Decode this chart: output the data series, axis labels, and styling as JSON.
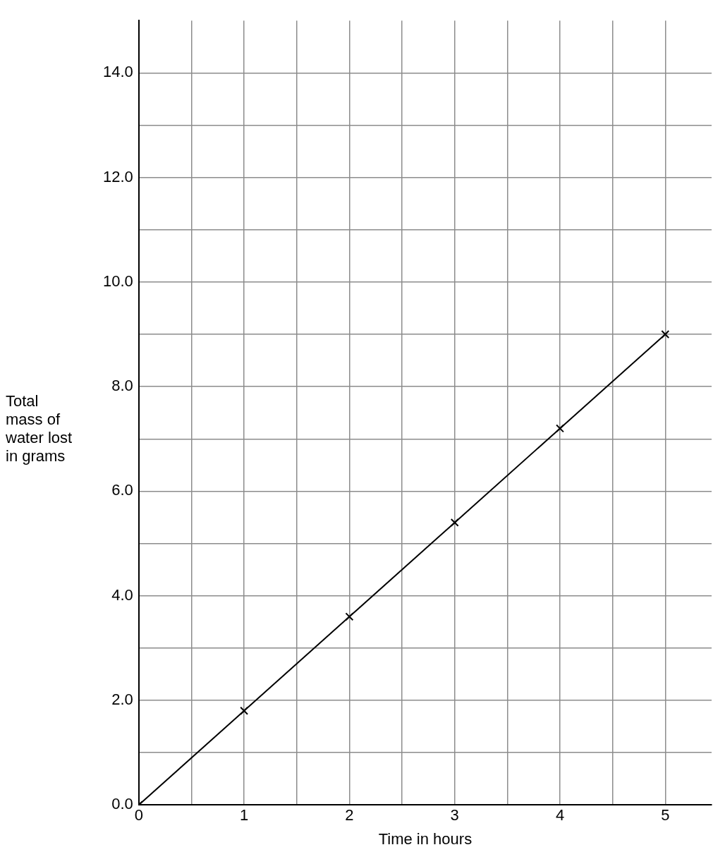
{
  "chart_data": {
    "type": "line",
    "xlabel": "Time in hours",
    "ylabel": "Total mass of water lost in grams",
    "x": [
      0,
      1,
      2,
      3,
      4,
      5
    ],
    "series": [
      {
        "color": "#000000",
        "values": [
          0,
          1.8,
          3.6,
          5.4,
          7.2,
          9.0
        ]
      }
    ],
    "xlim": [
      0,
      5.44
    ],
    "ylim": [
      0,
      15
    ],
    "xticks": [
      0,
      {
        "value": 0.5,
        "label": null
      },
      1,
      {
        "value": 1.5,
        "label": null
      },
      2,
      {
        "value": 2.5,
        "label": null
      },
      3,
      {
        "value": 3.5,
        "label": null
      },
      4,
      {
        "value": 4.5,
        "label": null
      },
      5
    ],
    "yticks": [
      {
        "value": 0,
        "label": "0.0"
      },
      {
        "value": 1,
        "label": null
      },
      {
        "value": 2,
        "label": "2.0"
      },
      {
        "value": 3,
        "label": null
      },
      {
        "value": 4,
        "label": "4.0"
      },
      {
        "value": 5,
        "label": null
      },
      {
        "value": 6,
        "label": "6.0"
      },
      {
        "value": 7,
        "label": null
      },
      {
        "value": 8,
        "label": "8.0"
      },
      {
        "value": 9,
        "label": null
      },
      {
        "value": 10,
        "label": "10.0"
      },
      {
        "value": 11,
        "label": null
      },
      {
        "value": 12,
        "label": "12.0"
      },
      {
        "value": 13,
        "label": null
      },
      {
        "value": 14,
        "label": "14.0"
      }
    ],
    "grid": true,
    "legend": false,
    "marker": "cross",
    "line_style": "solid"
  }
}
